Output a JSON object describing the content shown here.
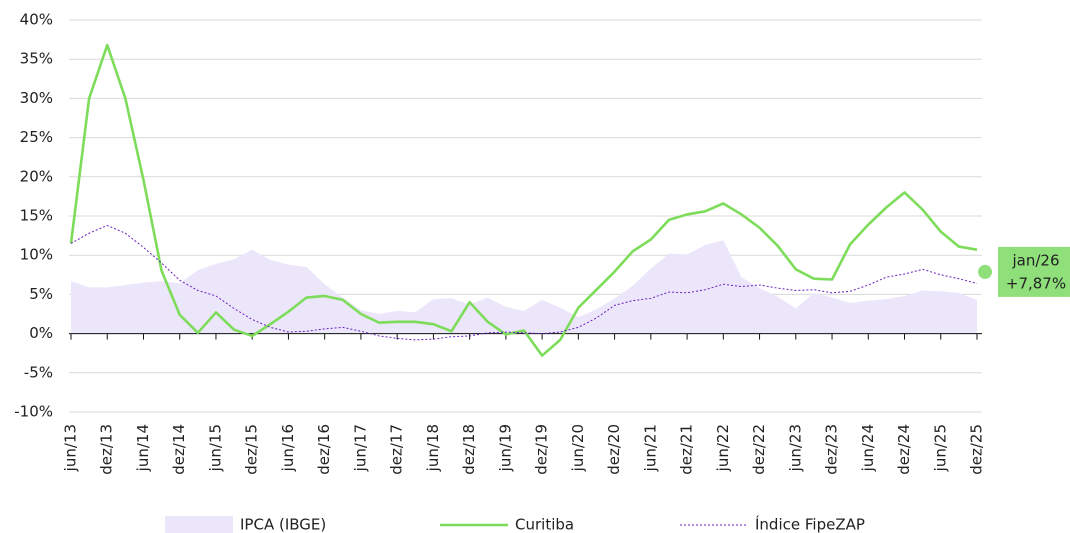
{
  "chart_data": {
    "type": "line",
    "categories": [
      "jun/13",
      null,
      "dez/13",
      null,
      "jun/14",
      null,
      "dez/14",
      null,
      "jun/15",
      null,
      "dez/15",
      null,
      "jun/16",
      null,
      "dez/16",
      null,
      "jun/17",
      null,
      "dez/17",
      null,
      "jun/18",
      null,
      "dez/18",
      null,
      "jun/19",
      null,
      "dez/19",
      null,
      "jun/20",
      null,
      "dez/20",
      null,
      "jun/21",
      null,
      "dez/21",
      null,
      "jun/22",
      null,
      "dez/22",
      null,
      "jun/23",
      null,
      "dez/23",
      null,
      "jun/24",
      null,
      "dez/24",
      null,
      "jun/25",
      null,
      "dez/25"
    ],
    "series": [
      {
        "name": "IPCA (IBGE)",
        "color": "#ece6fa",
        "style": "area",
        "values": [
          6.7,
          5.9,
          5.9,
          6.2,
          6.5,
          6.7,
          6.4,
          8.1,
          8.9,
          9.5,
          10.7,
          9.4,
          8.8,
          8.5,
          6.3,
          4.6,
          3.0,
          2.5,
          2.9,
          2.7,
          4.4,
          4.5,
          3.7,
          4.6,
          3.4,
          2.9,
          4.3,
          3.3,
          2.1,
          3.1,
          4.5,
          6.1,
          8.3,
          10.2,
          10.1,
          11.3,
          11.9,
          7.2,
          5.8,
          4.7,
          3.2,
          5.2,
          4.6,
          3.9,
          4.2,
          4.4,
          4.8,
          5.5,
          5.4,
          5.2,
          4.3
        ]
      },
      {
        "name": "Curitiba",
        "color": "#7ddc5a",
        "style": "solid",
        "values": [
          11.5,
          30,
          36.8,
          30,
          19.6,
          8,
          2.4,
          0.1,
          2.7,
          0.5,
          -0.3,
          1.2,
          2.8,
          4.6,
          4.8,
          4.3,
          2.5,
          1.4,
          1.5,
          1.5,
          1.2,
          0.3,
          4.0,
          1.5,
          -0.1,
          0.4,
          -2.8,
          -0.8,
          3.3,
          5.6,
          7.9,
          10.5,
          12,
          14.5,
          15.2,
          15.6,
          16.6,
          15.2,
          13.5,
          11.2,
          8.2,
          7,
          6.9,
          11.4,
          13.9,
          16.1,
          18,
          15.8,
          13,
          11.1,
          10.7
        ]
      },
      {
        "name": "Índice FipeZAP",
        "color": "#6a1fc2",
        "style": "dotted",
        "values": [
          11.5,
          12.8,
          13.8,
          12.8,
          11,
          9,
          6.8,
          5.5,
          4.8,
          3.2,
          1.8,
          0.8,
          0.2,
          0.3,
          0.6,
          0.8,
          0.3,
          -0.3,
          -0.6,
          -0.8,
          -0.7,
          -0.4,
          -0.3,
          0.1,
          0.2,
          0.1,
          0,
          0.2,
          0.8,
          2,
          3.6,
          4.2,
          4.5,
          5.3,
          5.2,
          5.6,
          6.3,
          6,
          6.2,
          5.8,
          5.5,
          5.6,
          5.2,
          5.4,
          6.2,
          7.2,
          7.6,
          8.2,
          7.5,
          7,
          6.4
        ]
      }
    ],
    "annotation": {
      "label": "jan/26",
      "value": 7.87,
      "value_label": "+7,87%",
      "color": "#8fe07a"
    },
    "ylim": [
      -10,
      40
    ],
    "yticks": [
      {
        "value": -10,
        "label": "-10%"
      },
      {
        "value": -5,
        "label": "-5%"
      },
      {
        "value": 0,
        "label": "0%"
      },
      {
        "value": 5,
        "label": "5%"
      },
      {
        "value": 10,
        "label": "10%"
      },
      {
        "value": 15,
        "label": "15%"
      },
      {
        "value": 20,
        "label": "20%"
      },
      {
        "value": 25,
        "label": "25%"
      },
      {
        "value": 30,
        "label": "30%"
      },
      {
        "value": 35,
        "label": "35%"
      },
      {
        "value": 40,
        "label": "40%"
      }
    ],
    "grid": true
  }
}
